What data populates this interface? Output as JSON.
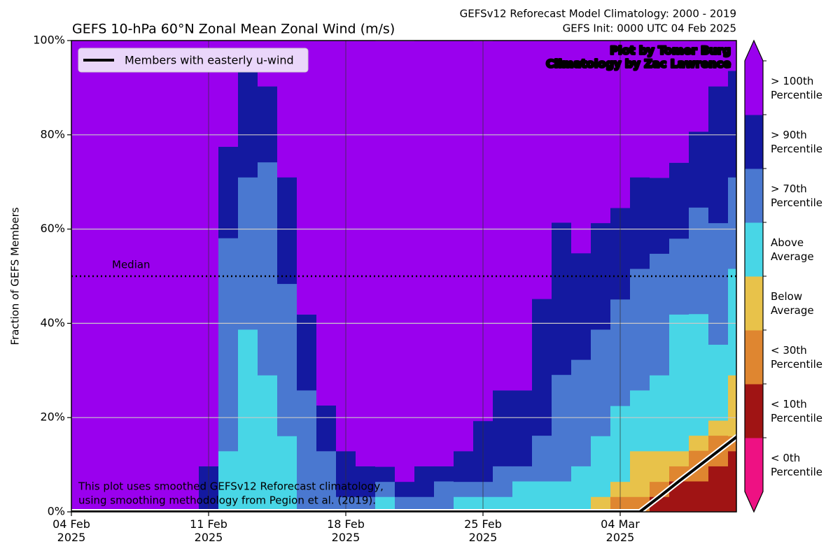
{
  "chart_data": {
    "type": "stacked-step",
    "title": "GEFS 10-hPa 60°N Zonal Mean Zonal Wind (m/s)",
    "subtitle": [
      "GEFSv12 Reforecast Model Climatology: 2000 - 2019",
      "GEFS Init: 0000 UTC 04 Feb 2025"
    ],
    "ylabel": "Fraction of GEFS Members",
    "annotations": [
      "Plot by Tomer Burg",
      "Climatology by Zac Lawrence"
    ],
    "note": [
      "This plot uses smoothed GEFSv12 Reforecast climatology,",
      "using smoothing methodology from Pegion et al. (2019)."
    ],
    "median": {
      "label": "Median",
      "value": 50
    },
    "x": [
      "04 Feb 2025",
      "05 Feb 2025",
      "06 Feb 2025",
      "07 Feb 2025",
      "08 Feb 2025",
      "09 Feb 2025",
      "10 Feb 2025",
      "11 Feb 2025",
      "12 Feb 2025",
      "13 Feb 2025",
      "14 Feb 2025",
      "15 Feb 2025",
      "16 Feb 2025",
      "17 Feb 2025",
      "18 Feb 2025",
      "19 Feb 2025",
      "20 Feb 2025",
      "21 Feb 2025",
      "22 Feb 2025",
      "23 Feb 2025",
      "24 Feb 2025",
      "25 Feb 2025",
      "26 Feb 2025",
      "27 Feb 2025",
      "28 Feb 2025",
      "01 Mar 2025",
      "02 Mar 2025",
      "03 Mar 2025",
      "04 Mar 2025",
      "05 Mar 2025",
      "06 Mar 2025",
      "07 Mar 2025",
      "08 Mar 2025",
      "09 Mar 2025",
      "10 Mar 2025"
    ],
    "xticks": [
      {
        "value": "04 Feb 2025",
        "label": "04 Feb\n2025"
      },
      {
        "value": "11 Feb 2025",
        "label": "11 Feb\n2025"
      },
      {
        "value": "18 Feb 2025",
        "label": "18 Feb\n2025"
      },
      {
        "value": "25 Feb 2025",
        "label": "25 Feb\n2025"
      },
      {
        "value": "04 Mar 2025",
        "label": "04 Mar\n2025"
      }
    ],
    "ylim": [
      0,
      100
    ],
    "yticks": [
      {
        "value": 0,
        "label": "0%"
      },
      {
        "value": 20,
        "label": "20%"
      },
      {
        "value": 40,
        "label": "40%"
      },
      {
        "value": 60,
        "label": "60%"
      },
      {
        "value": 80,
        "label": "80%"
      },
      {
        "value": 100,
        "label": "100%"
      }
    ],
    "grid": true,
    "series": [
      {
        "name": "< 0th Percentile",
        "color": "#ee1183",
        "values": [
          0,
          0,
          0,
          0,
          0,
          0,
          0,
          0,
          0,
          0,
          0,
          0,
          0,
          0,
          0,
          0,
          0,
          0,
          0,
          0,
          0,
          0,
          0,
          0,
          0,
          0,
          0,
          0,
          0,
          0,
          0,
          0,
          0,
          0,
          0
        ]
      },
      {
        "name": "< 10th Percentile",
        "color": "#a01414",
        "values": [
          0,
          0,
          0,
          0,
          0,
          0,
          0,
          0,
          0,
          0,
          0,
          0,
          0,
          0,
          0,
          0,
          0,
          0,
          0,
          0,
          0,
          0,
          0,
          0,
          0,
          0,
          0,
          0,
          0,
          0,
          3.2,
          6.5,
          6.5,
          9.7,
          12.9
        ]
      },
      {
        "name": "< 30th Percentile",
        "color": "#df8630",
        "values": [
          0,
          0,
          0,
          0,
          0,
          0,
          0,
          0,
          0,
          0,
          0,
          0,
          0,
          0,
          0,
          0,
          0,
          0,
          0,
          0,
          0,
          0,
          0,
          0,
          0,
          0,
          0,
          0,
          3.2,
          3.2,
          3.2,
          3.2,
          6.5,
          6.5,
          3.2
        ]
      },
      {
        "name": "Below Average",
        "color": "#e8c24a",
        "values": [
          0,
          0,
          0,
          0,
          0,
          0,
          0,
          0,
          0,
          0,
          0,
          0,
          0,
          0,
          0,
          0,
          0,
          0,
          0,
          0,
          0,
          0,
          0,
          0,
          0,
          0,
          0,
          3.2,
          3.2,
          9.7,
          6.5,
          3.2,
          3.2,
          3.2,
          12.9
        ]
      },
      {
        "name": "Above Average",
        "color": "#48d6e6",
        "values": [
          0,
          0,
          0,
          0,
          0,
          0,
          0,
          0,
          12.9,
          38.7,
          29.0,
          16.1,
          0,
          0,
          0,
          0,
          3.2,
          0,
          0,
          0,
          3.2,
          3.2,
          3.2,
          6.5,
          6.5,
          6.5,
          9.7,
          12.9,
          16.1,
          12.9,
          16.1,
          29.0,
          25.8,
          16.1,
          22.6
        ]
      },
      {
        "name": "> 70th Percentile",
        "color": "#4a78d0",
        "values": [
          0,
          0,
          0,
          0,
          0,
          0,
          0,
          0,
          45.2,
          32.3,
          45.2,
          32.3,
          25.8,
          12.9,
          3.2,
          3.2,
          3.2,
          3.2,
          3.2,
          6.5,
          3.2,
          3.2,
          6.5,
          3.2,
          9.7,
          22.6,
          22.6,
          22.6,
          22.6,
          25.8,
          25.8,
          16.1,
          22.6,
          25.8,
          19.4
        ]
      },
      {
        "name": "> 90th Percentile",
        "color": "#1419a0",
        "values": [
          0,
          0,
          0,
          0,
          0,
          0,
          0,
          9.7,
          19.4,
          22.6,
          16.1,
          22.6,
          16.1,
          9.7,
          9.7,
          6.5,
          3.2,
          3.2,
          6.5,
          3.2,
          6.5,
          12.9,
          16.1,
          16.1,
          29.0,
          32.3,
          22.6,
          22.6,
          19.4,
          19.4,
          16.1,
          16.1,
          16.1,
          29.0,
          22.6
        ]
      },
      {
        "name": "> 100th Percentile",
        "color": "#9a00ee",
        "values": [
          100,
          100,
          100,
          100,
          100,
          100,
          100,
          90.3,
          22.6,
          6.5,
          9.7,
          29.0,
          58.1,
          77.4,
          87.1,
          90.3,
          90.3,
          93.5,
          90.3,
          90.3,
          87.1,
          80.6,
          74.2,
          74.2,
          54.8,
          38.7,
          45.2,
          38.7,
          35.5,
          29.0,
          29.0,
          25.8,
          19.4,
          9.7,
          6.5
        ]
      }
    ],
    "lines": [
      {
        "name": "Members with easterly u-wind",
        "color": "#000000",
        "values": [
          0,
          0,
          0,
          0,
          0,
          0,
          0,
          0,
          0,
          0,
          0,
          0,
          0,
          0,
          0,
          0,
          0,
          0,
          0,
          0,
          0,
          0,
          0,
          0,
          0,
          0,
          0,
          0,
          0,
          0,
          3.2,
          6.5,
          9.7,
          12.9,
          16.1
        ]
      }
    ]
  }
}
